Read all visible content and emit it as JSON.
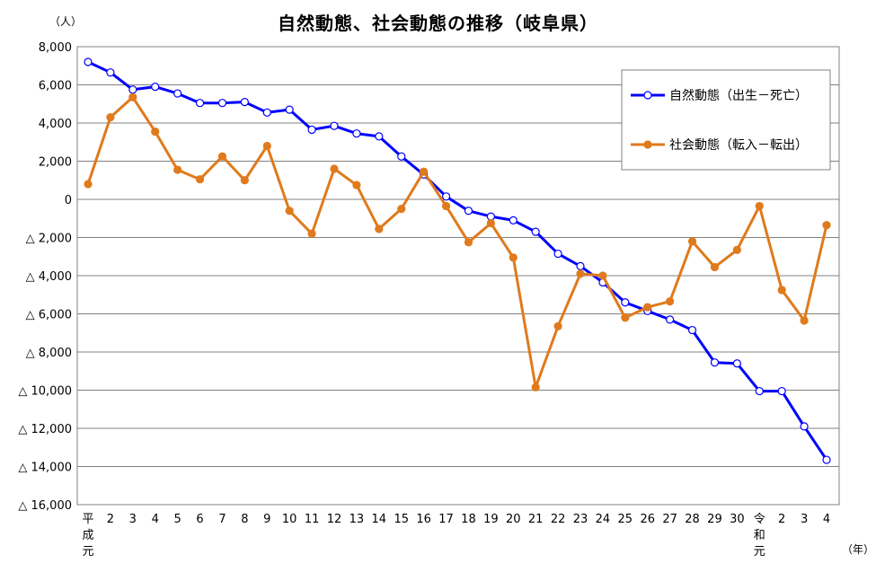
{
  "chart_data": {
    "type": "line",
    "title": "自然動態、社会動態の推移（岐阜県）",
    "y_unit": "（人）",
    "x_unit": "（年）",
    "ylim": [
      -16000,
      8000
    ],
    "y_ticks": [
      {
        "value": 8000,
        "label": "8,000"
      },
      {
        "value": 6000,
        "label": "6,000"
      },
      {
        "value": 4000,
        "label": "4,000"
      },
      {
        "value": 2000,
        "label": "2,000"
      },
      {
        "value": 0,
        "label": "0"
      },
      {
        "value": -2000,
        "label": "△  2,000"
      },
      {
        "value": -4000,
        "label": "△  4,000"
      },
      {
        "value": -6000,
        "label": "△  6,000"
      },
      {
        "value": -8000,
        "label": "△  8,000"
      },
      {
        "value": -10000,
        "label": "△  10,000"
      },
      {
        "value": -12000,
        "label": "△  12,000"
      },
      {
        "value": -14000,
        "label": "△  14,000"
      },
      {
        "value": -16000,
        "label": "△  16,000"
      }
    ],
    "grid": true,
    "legend_position": "top-right",
    "categories": [
      "平成元",
      "2",
      "3",
      "4",
      "5",
      "6",
      "7",
      "8",
      "9",
      "10",
      "11",
      "12",
      "13",
      "14",
      "15",
      "16",
      "17",
      "18",
      "19",
      "20",
      "21",
      "22",
      "23",
      "24",
      "25",
      "26",
      "27",
      "28",
      "29",
      "30",
      "令和元",
      "2",
      "3",
      "4"
    ],
    "series": [
      {
        "name": "自然動態（出生－死亡）",
        "color": "#0000ff",
        "marker": "open-circle",
        "values": [
          7200,
          6650,
          5750,
          5900,
          5550,
          5050,
          5050,
          5100,
          4550,
          4700,
          3650,
          3850,
          3450,
          3300,
          2250,
          1300,
          150,
          -600,
          -900,
          -1100,
          -1700,
          -2850,
          -3500,
          -4350,
          -5400,
          -5850,
          -6300,
          -6850,
          -8550,
          -8600,
          -10050,
          -10050,
          -11900,
          -13650
        ]
      },
      {
        "name": "社会動態（転入－転出）",
        "color": "#e07a1c",
        "marker": "filled-circle",
        "values": [
          800,
          4300,
          5350,
          3550,
          1550,
          1050,
          2250,
          1000,
          2800,
          -600,
          -1800,
          1600,
          750,
          -1550,
          -500,
          1450,
          -350,
          -2250,
          -1250,
          -3050,
          -9850,
          -6650,
          -3900,
          -4000,
          -6200,
          -5650,
          -5350,
          -2200,
          -3550,
          -2650,
          -350,
          -4750,
          -6350,
          -1350
        ]
      }
    ]
  }
}
